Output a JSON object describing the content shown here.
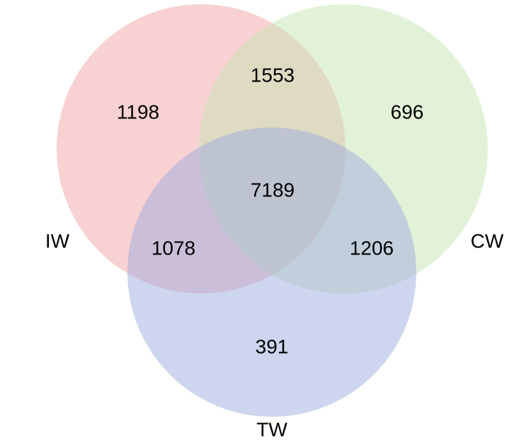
{
  "sets": [
    {
      "key": "iw",
      "label": "IW",
      "color": "#f2a3a6"
    },
    {
      "key": "cw",
      "label": "CW",
      "color": "#c5e6b2"
    },
    {
      "key": "tw",
      "label": "TW",
      "color": "#9dabdd"
    }
  ],
  "regions": {
    "iw_only": "1198",
    "cw_only": "696",
    "tw_only": "391",
    "iw_cw": "1553",
    "iw_tw": "1078",
    "cw_tw": "1206",
    "iw_cw_tw": "7189"
  }
}
